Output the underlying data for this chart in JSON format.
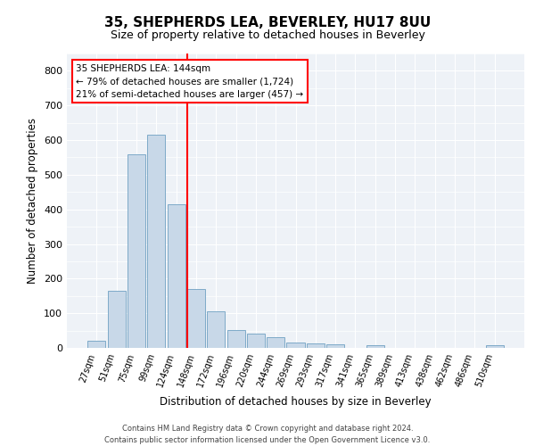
{
  "title1": "35, SHEPHERDS LEA, BEVERLEY, HU17 8UU",
  "title2": "Size of property relative to detached houses in Beverley",
  "xlabel": "Distribution of detached houses by size in Beverley",
  "ylabel": "Number of detached properties",
  "categories": [
    "27sqm",
    "51sqm",
    "75sqm",
    "99sqm",
    "124sqm",
    "148sqm",
    "172sqm",
    "196sqm",
    "220sqm",
    "244sqm",
    "269sqm",
    "293sqm",
    "317sqm",
    "341sqm",
    "365sqm",
    "389sqm",
    "413sqm",
    "438sqm",
    "462sqm",
    "486sqm",
    "510sqm"
  ],
  "values": [
    20,
    165,
    560,
    615,
    415,
    170,
    105,
    52,
    40,
    30,
    15,
    12,
    10,
    0,
    8,
    0,
    0,
    0,
    0,
    0,
    8
  ],
  "bar_color": "#c8d8e8",
  "bar_edge_color": "#7eaac8",
  "vline_color": "red",
  "annotation_line1": "35 SHEPHERDS LEA: 144sqm",
  "annotation_line2": "← 79% of detached houses are smaller (1,724)",
  "annotation_line3": "21% of semi-detached houses are larger (457) →",
  "ylim": [
    0,
    850
  ],
  "yticks": [
    0,
    100,
    200,
    300,
    400,
    500,
    600,
    700,
    800
  ],
  "footer1": "Contains HM Land Registry data © Crown copyright and database right 2024.",
  "footer2": "Contains public sector information licensed under the Open Government Licence v3.0.",
  "bg_color": "#eef2f7",
  "grid_color": "#ffffff",
  "title1_fontsize": 11,
  "title2_fontsize": 9,
  "xlabel_fontsize": 8.5,
  "ylabel_fontsize": 8.5,
  "annot_fontsize": 7.5,
  "tick_fontsize": 7,
  "footer_fontsize": 6
}
